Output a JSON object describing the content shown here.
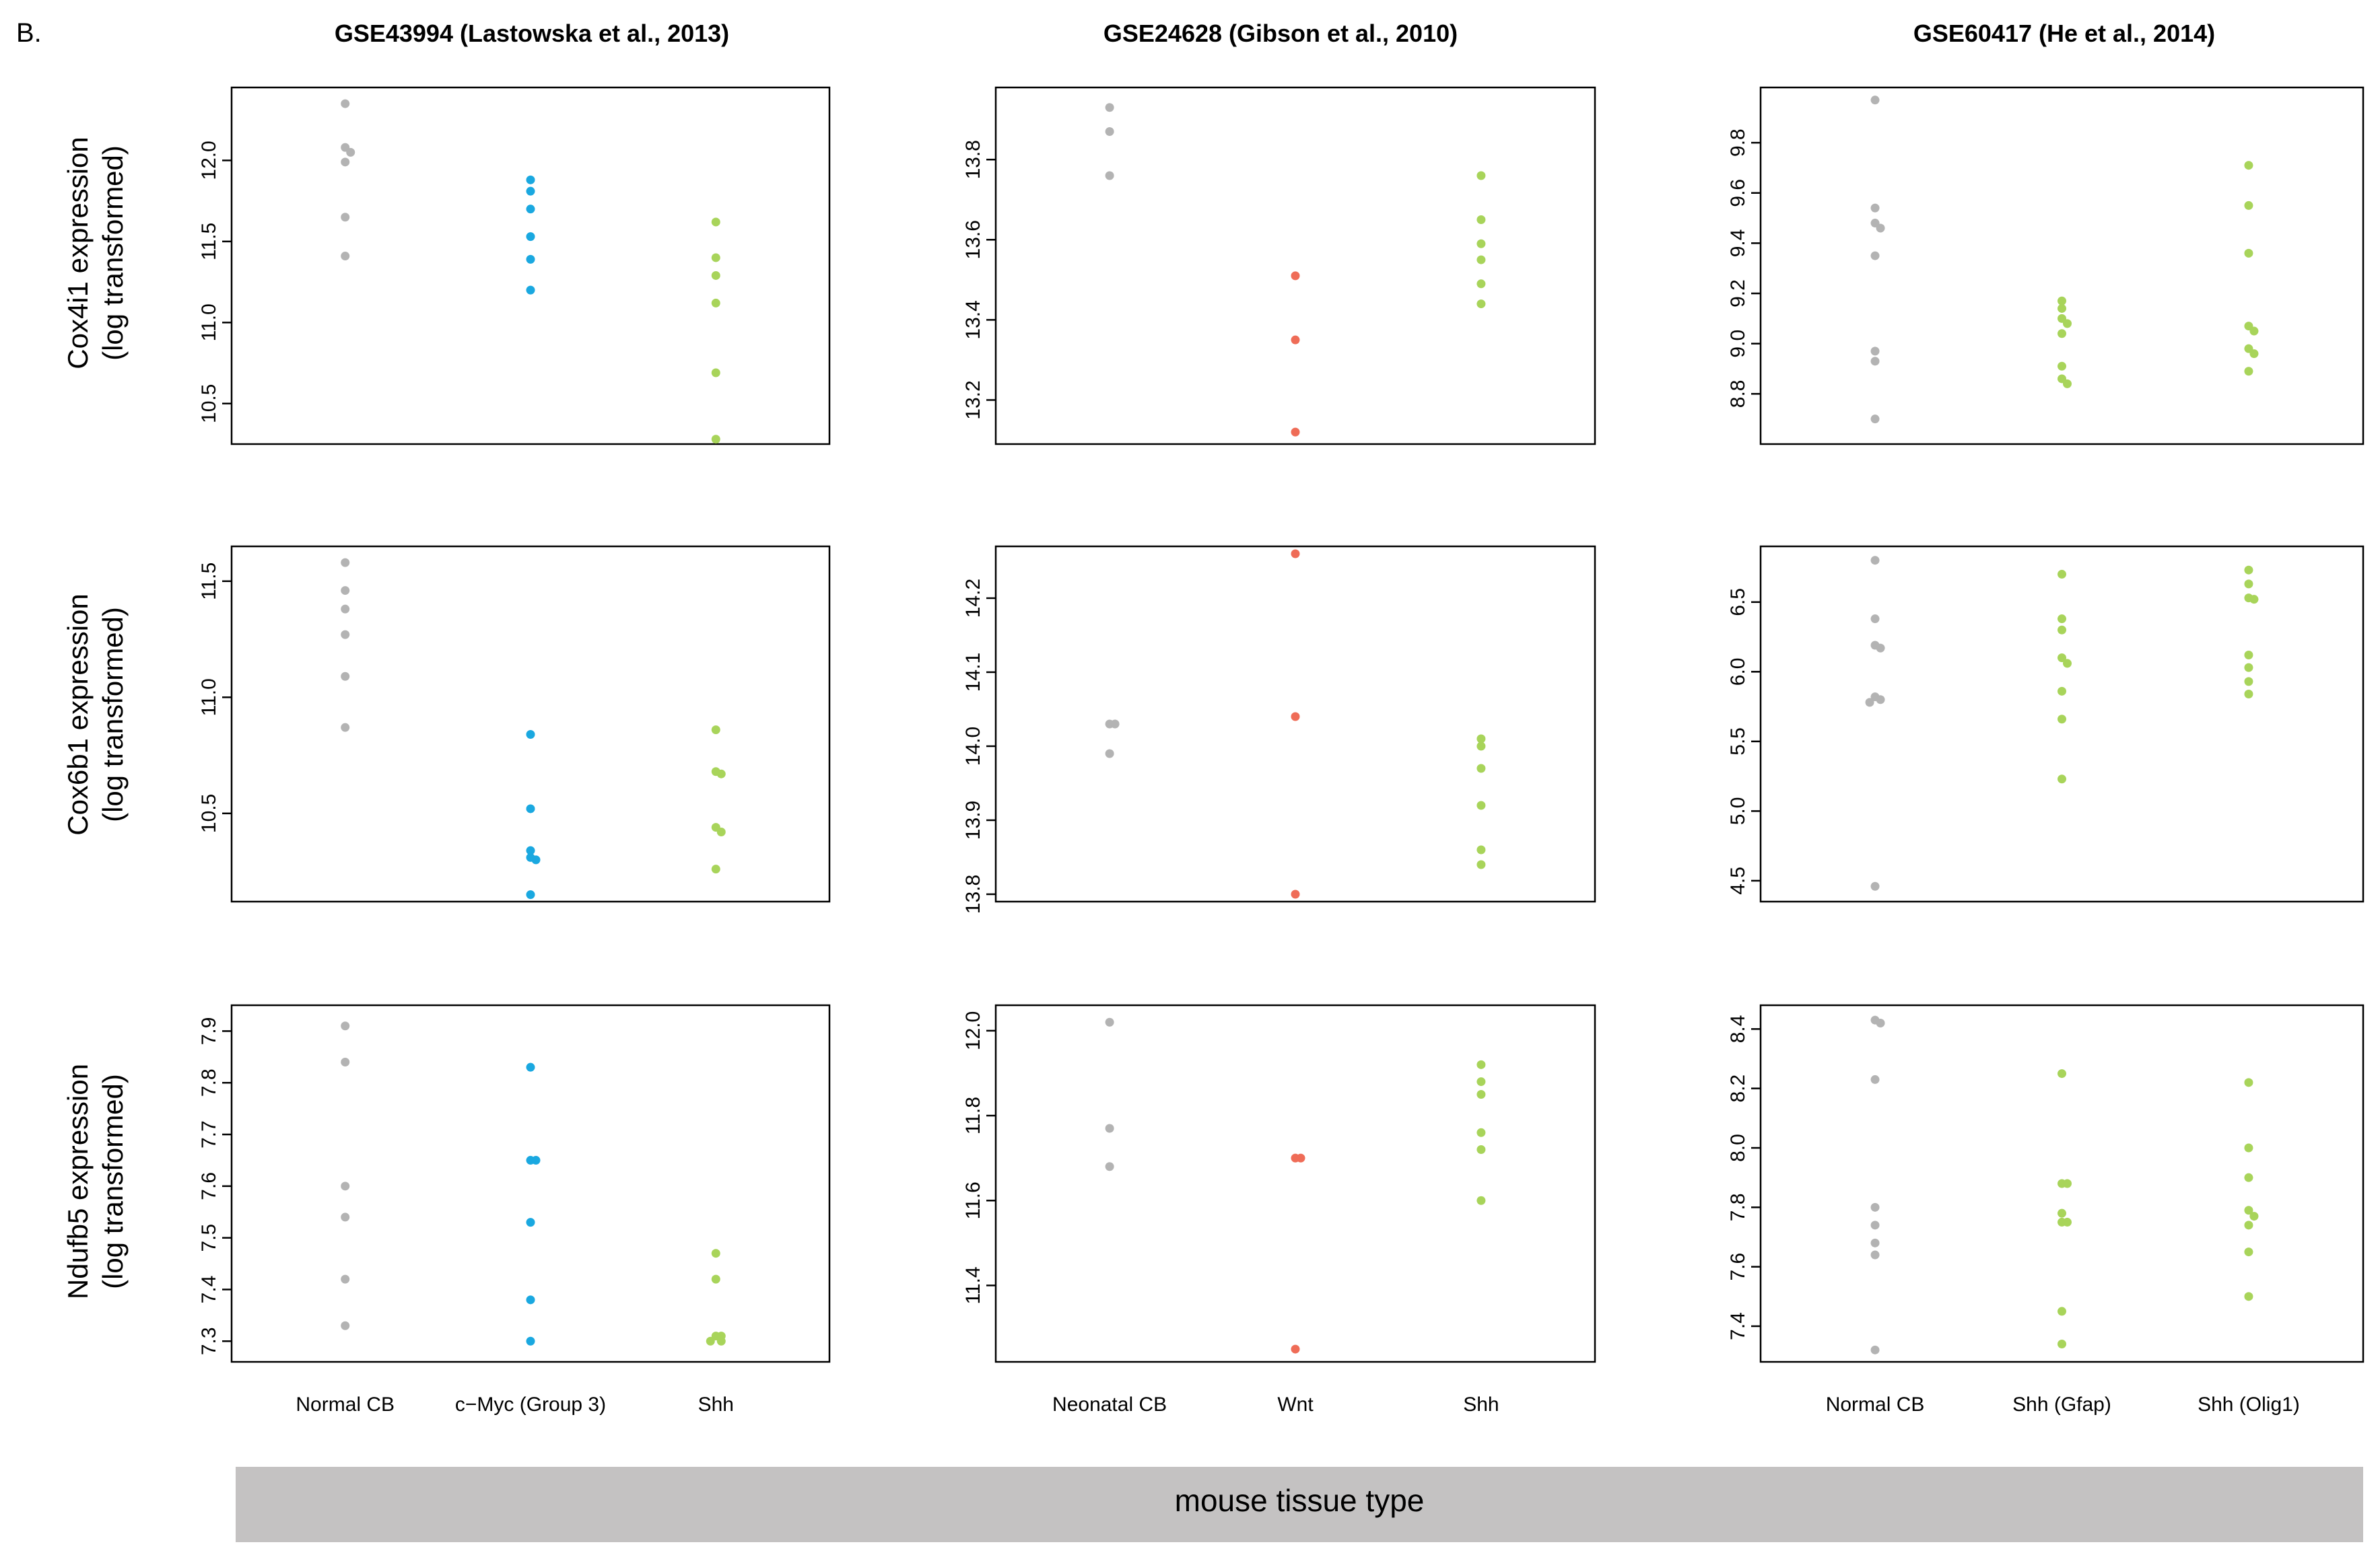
{
  "figure": {
    "panel_letter": "B.",
    "bottom_label": "mouse tissue type"
  },
  "colors": {
    "gray": "#b3b3b3",
    "blue": "#1aa8e0",
    "red": "#ef6c57",
    "green": "#a8d45a",
    "bottom_bar": "#c4c2c2"
  },
  "row_labels": [
    {
      "gene": "Cox4i1 expression",
      "unit": "(log transformed)"
    },
    {
      "gene": "Cox6b1 expression",
      "unit": "(log transformed)"
    },
    {
      "gene": "Ndufb5 expression",
      "unit": "(log transformed)"
    }
  ],
  "chart_data": [
    {
      "type": "scatter",
      "title": "GSE43994 (Lastowska et al., 2013)",
      "ylabel": "Cox4i1 expression (log transformed)",
      "categories": [
        "Normal CB",
        "c−Myc (Group 3)",
        "Shh"
      ],
      "ylim": [
        10.25,
        12.45
      ],
      "yticks": [
        10.5,
        11.0,
        11.5,
        12.0
      ],
      "series": [
        {
          "name": "Normal CB",
          "color": "gray",
          "values": [
            12.35,
            12.08,
            12.05,
            11.99,
            11.65,
            11.41
          ]
        },
        {
          "name": "c−Myc (Group 3)",
          "color": "blue",
          "values": [
            11.88,
            11.81,
            11.7,
            11.53,
            11.39,
            11.2
          ]
        },
        {
          "name": "Shh",
          "color": "green",
          "values": [
            11.62,
            11.4,
            11.29,
            11.12,
            10.69,
            10.28
          ]
        }
      ]
    },
    {
      "type": "scatter",
      "title": "GSE24628 (Gibson et al., 2010)",
      "ylabel": "Cox4i1 expression (log transformed)",
      "categories": [
        "Neonatal CB",
        "Wnt",
        "Shh"
      ],
      "ylim": [
        13.09,
        13.98
      ],
      "yticks": [
        13.2,
        13.4,
        13.6,
        13.8
      ],
      "series": [
        {
          "name": "Neonatal CB",
          "color": "gray",
          "values": [
            13.93,
            13.87,
            13.76
          ]
        },
        {
          "name": "Wnt",
          "color": "red",
          "values": [
            13.51,
            13.35,
            13.12
          ]
        },
        {
          "name": "Shh",
          "color": "green",
          "values": [
            13.76,
            13.65,
            13.59,
            13.55,
            13.49,
            13.44
          ]
        }
      ]
    },
    {
      "type": "scatter",
      "title": "GSE60417 (He et al., 2014)",
      "ylabel": "Cox4i1 expression (log transformed)",
      "categories": [
        "Normal CB",
        "Shh (Gfap)",
        "Shh (Olig1)"
      ],
      "ylim": [
        8.6,
        10.02
      ],
      "yticks": [
        8.8,
        9.0,
        9.2,
        9.4,
        9.6,
        9.8
      ],
      "series": [
        {
          "name": "Normal CB",
          "color": "gray",
          "values": [
            9.97,
            9.54,
            9.48,
            9.46,
            9.35,
            8.97,
            8.93,
            8.7
          ]
        },
        {
          "name": "Shh (Gfap)",
          "color": "green",
          "values": [
            9.17,
            9.14,
            9.1,
            9.08,
            9.04,
            8.91,
            8.86,
            8.84
          ]
        },
        {
          "name": "Shh (Olig1)",
          "color": "green",
          "values": [
            9.71,
            9.55,
            9.36,
            9.07,
            9.05,
            8.98,
            8.96,
            8.89
          ]
        }
      ]
    },
    {
      "type": "scatter",
      "title": "GSE43994 (Lastowska et al., 2013)",
      "ylabel": "Cox6b1 expression (log transformed)",
      "categories": [
        "Normal CB",
        "c−Myc (Group 3)",
        "Shh"
      ],
      "ylim": [
        10.12,
        11.65
      ],
      "yticks": [
        10.5,
        11.0,
        11.5
      ],
      "series": [
        {
          "name": "Normal CB",
          "color": "gray",
          "values": [
            11.58,
            11.46,
            11.38,
            11.27,
            11.09,
            10.87
          ]
        },
        {
          "name": "c−Myc (Group 3)",
          "color": "blue",
          "values": [
            10.84,
            10.52,
            10.34,
            10.31,
            10.3,
            10.15
          ]
        },
        {
          "name": "Shh",
          "color": "green",
          "values": [
            10.86,
            10.68,
            10.67,
            10.44,
            10.42,
            10.26
          ]
        }
      ]
    },
    {
      "type": "scatter",
      "title": "GSE24628 (Gibson et al., 2010)",
      "ylabel": "Cox6b1 expression (log transformed)",
      "categories": [
        "Neonatal CB",
        "Wnt",
        "Shh"
      ],
      "ylim": [
        13.79,
        14.27
      ],
      "yticks": [
        13.8,
        13.9,
        14.0,
        14.1,
        14.2
      ],
      "series": [
        {
          "name": "Neonatal CB",
          "color": "gray",
          "values": [
            14.03,
            14.03,
            13.99
          ]
        },
        {
          "name": "Wnt",
          "color": "red",
          "values": [
            14.26,
            14.04,
            13.8
          ]
        },
        {
          "name": "Shh",
          "color": "green",
          "values": [
            14.01,
            14.0,
            13.97,
            13.92,
            13.86,
            13.84
          ]
        }
      ]
    },
    {
      "type": "scatter",
      "title": "GSE60417 (He et al., 2014)",
      "ylabel": "Cox6b1 expression (log transformed)",
      "categories": [
        "Normal CB",
        "Shh (Gfap)",
        "Shh (Olig1)"
      ],
      "ylim": [
        4.35,
        6.9
      ],
      "yticks": [
        4.5,
        5.0,
        5.5,
        6.0,
        6.5
      ],
      "series": [
        {
          "name": "Normal CB",
          "color": "gray",
          "values": [
            6.8,
            6.38,
            6.19,
            6.17,
            5.82,
            5.8,
            5.78,
            4.46
          ]
        },
        {
          "name": "Shh (Gfap)",
          "color": "green",
          "values": [
            6.7,
            6.38,
            6.3,
            6.1,
            6.06,
            5.86,
            5.66,
            5.23
          ]
        },
        {
          "name": "Shh (Olig1)",
          "color": "green",
          "values": [
            6.73,
            6.63,
            6.53,
            6.52,
            6.12,
            6.03,
            5.93,
            5.84
          ]
        }
      ]
    },
    {
      "type": "scatter",
      "title": "GSE43994 (Lastowska et al., 2013)",
      "ylabel": "Ndufb5 expression (log transformed)",
      "categories": [
        "Normal CB",
        "c−Myc (Group 3)",
        "Shh"
      ],
      "ylim": [
        7.26,
        7.95
      ],
      "yticks": [
        7.3,
        7.4,
        7.5,
        7.6,
        7.7,
        7.8,
        7.9
      ],
      "series": [
        {
          "name": "Normal CB",
          "color": "gray",
          "values": [
            7.91,
            7.84,
            7.6,
            7.54,
            7.42,
            7.33
          ]
        },
        {
          "name": "c−Myc (Group 3)",
          "color": "blue",
          "values": [
            7.83,
            7.65,
            7.65,
            7.53,
            7.38,
            7.3
          ]
        },
        {
          "name": "Shh",
          "color": "green",
          "values": [
            7.47,
            7.42,
            7.31,
            7.31,
            7.3,
            7.3
          ]
        }
      ]
    },
    {
      "type": "scatter",
      "title": "GSE24628 (Gibson et al., 2010)",
      "ylabel": "Ndufb5 expression (log transformed)",
      "categories": [
        "Neonatal CB",
        "Wnt",
        "Shh"
      ],
      "ylim": [
        11.22,
        12.06
      ],
      "yticks": [
        11.4,
        11.6,
        11.8,
        12.0
      ],
      "series": [
        {
          "name": "Neonatal CB",
          "color": "gray",
          "values": [
            12.02,
            11.77,
            11.68
          ]
        },
        {
          "name": "Wnt",
          "color": "red",
          "values": [
            11.7,
            11.7,
            11.25
          ]
        },
        {
          "name": "Shh",
          "color": "green",
          "values": [
            11.92,
            11.88,
            11.85,
            11.76,
            11.72,
            11.6
          ]
        }
      ]
    },
    {
      "type": "scatter",
      "title": "GSE60417 (He et al., 2014)",
      "ylabel": "Ndufb5 expression (log transformed)",
      "categories": [
        "Normal CB",
        "Shh (Gfap)",
        "Shh (Olig1)"
      ],
      "ylim": [
        7.28,
        8.48
      ],
      "yticks": [
        7.4,
        7.6,
        7.8,
        8.0,
        8.2,
        8.4
      ],
      "series": [
        {
          "name": "Normal CB",
          "color": "gray",
          "values": [
            8.43,
            8.42,
            8.23,
            7.8,
            7.74,
            7.68,
            7.64,
            7.32
          ]
        },
        {
          "name": "Shh (Gfap)",
          "color": "green",
          "values": [
            8.25,
            7.88,
            7.88,
            7.78,
            7.75,
            7.75,
            7.45,
            7.34
          ]
        },
        {
          "name": "Shh (Olig1)",
          "color": "green",
          "values": [
            8.22,
            8.0,
            7.9,
            7.79,
            7.77,
            7.74,
            7.65,
            7.5
          ]
        }
      ]
    }
  ]
}
